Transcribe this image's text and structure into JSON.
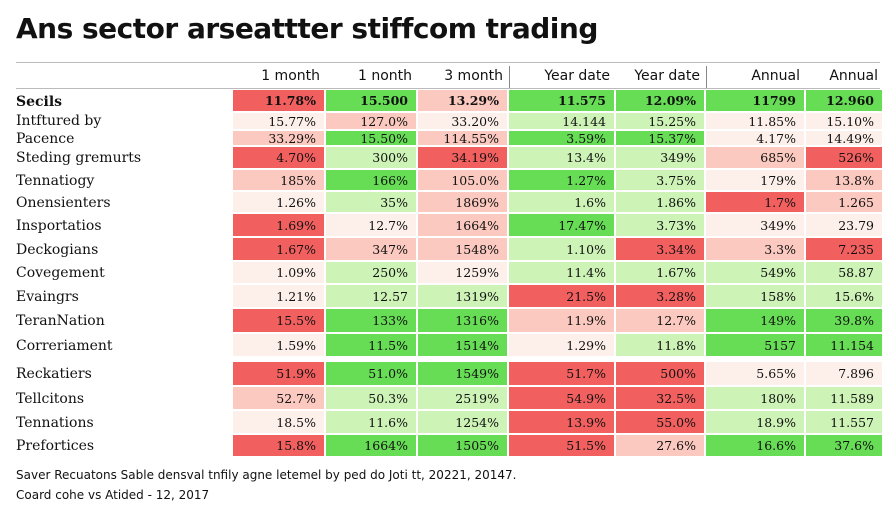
{
  "title": "Ans sector arseattter stiffcom trading",
  "columns": [
    "1 month",
    "1 nonth",
    "3 month",
    "Year date",
    "Year date",
    "Annual",
    "Annual"
  ],
  "footnotes": [
    "Saver Recuatons Sable densval tnfily agne letemel by ped do Joti tt, 20221, 20147.",
    "Coard cohe vs Atided - 12, 2017"
  ],
  "colors": {
    "strong_red": "#f25f5f",
    "light_red": "#fbc9bf",
    "pale": "#fdf0ea",
    "light_green": "#cdf3b6",
    "strong_green": "#66dd55"
  },
  "chart_data": {
    "type": "heatmap",
    "title": "Ans sector arseattter stiffcom trading",
    "columns": [
      "1 month",
      "1 nonth",
      "3 month",
      "Year date",
      "Year date",
      "Annual",
      "Annual"
    ],
    "rows": [
      {
        "label": "Secils",
        "bold": true,
        "values": [
          "11.78%",
          "15.500",
          "13.29%",
          "11.575",
          "12.09%",
          "11799",
          "12.960"
        ],
        "levels": [
          "sr",
          "sg",
          "lr",
          "sg",
          "sg",
          "sg",
          "sg"
        ]
      },
      {
        "label": "Intftured by",
        "values": [
          "15.77%",
          "127.0%",
          "33.20%",
          "14.144",
          "15.25%",
          "11.85%",
          "15.10%"
        ],
        "levels": [
          "pr",
          "lr",
          "pr",
          "lg",
          "lg",
          "pr",
          "pr"
        ]
      },
      {
        "label": "Pacence",
        "values": [
          "33.29%",
          "15.50%",
          "114.55%",
          "3.59%",
          "15.37%",
          "4.17%",
          "14.49%"
        ],
        "levels": [
          "lr",
          "sg",
          "lr",
          "sg",
          "sg",
          "pr",
          "pr"
        ]
      },
      {
        "label": "Steding gremurts",
        "values": [
          "4.70%",
          "300%",
          "34.19%",
          "13.4%",
          "349%",
          "685%",
          "526%"
        ],
        "levels": [
          "sr",
          "lg",
          "sr",
          "lg",
          "lg",
          "lr",
          "sr"
        ]
      },
      {
        "label": "Tennatiogy",
        "values": [
          "185%",
          "166%",
          "105.0%",
          "1.27%",
          "3.75%",
          "179%",
          "13.8%"
        ],
        "levels": [
          "lr",
          "sg",
          "lr",
          "sg",
          "lg",
          "pr",
          "lr"
        ]
      },
      {
        "label": "Onensienters",
        "values": [
          "1.26%",
          "35%",
          "1869%",
          "1.6%",
          "1.86%",
          "1.7%",
          "1.265"
        ],
        "levels": [
          "pr",
          "lg",
          "lr",
          "lg",
          "lg",
          "sr",
          "lr"
        ]
      },
      {
        "label": "Insportatios",
        "values": [
          "1.69%",
          "12.7%",
          "1664%",
          "17.47%",
          "3.73%",
          "349%",
          "23.79"
        ],
        "levels": [
          "sr",
          "pr",
          "lr",
          "sg",
          "lg",
          "pr",
          "pr"
        ]
      },
      {
        "label": "Deckogians",
        "values": [
          "1.67%",
          "347%",
          "1548%",
          "1.10%",
          "3.34%",
          "3.3%",
          "7.235"
        ],
        "levels": [
          "sr",
          "lr",
          "lr",
          "lg",
          "sr",
          "lr",
          "sr"
        ]
      },
      {
        "label": "Covegement",
        "values": [
          "1.09%",
          "250%",
          "1259%",
          "11.4%",
          "1.67%",
          "549%",
          "58.87"
        ],
        "levels": [
          "pr",
          "lg",
          "pr",
          "lg",
          "lg",
          "lg",
          "lg"
        ]
      },
      {
        "label": "Evaingrs",
        "values": [
          "1.21%",
          "12.57",
          "1319%",
          "21.5%",
          "3.28%",
          "158%",
          "15.6%"
        ],
        "levels": [
          "pr",
          "lg",
          "lg",
          "sr",
          "sr",
          "lg",
          "lg"
        ]
      },
      {
        "label": "TeranNation",
        "values": [
          "15.5%",
          "133%",
          "1316%",
          "11.9%",
          "12.7%",
          "149%",
          "39.8%"
        ],
        "levels": [
          "sr",
          "sg",
          "sg",
          "lr",
          "lr",
          "sg",
          "sg"
        ]
      },
      {
        "label": "Correriament",
        "values": [
          "1.59%",
          "11.5%",
          "1514%",
          "1.29%",
          "11.8%",
          "5157",
          "11.154"
        ],
        "levels": [
          "pr",
          "sg",
          "sg",
          "pr",
          "lg",
          "sg",
          "sg"
        ]
      },
      {
        "label": "Reckatiers",
        "values": [
          "51.9%",
          "51.0%",
          "1549%",
          "51.7%",
          "500%",
          "5.65%",
          "7.896"
        ],
        "levels": [
          "sr",
          "sg",
          "sg",
          "sr",
          "sr",
          "pr",
          "pr"
        ]
      },
      {
        "label": "Tellcitons",
        "values": [
          "52.7%",
          "50.3%",
          "2519%",
          "54.9%",
          "32.5%",
          "180%",
          "11.589"
        ],
        "levels": [
          "lr",
          "lg",
          "lg",
          "sr",
          "sr",
          "lg",
          "lg"
        ]
      },
      {
        "label": "Tennations",
        "values": [
          "18.5%",
          "11.6%",
          "1254%",
          "13.9%",
          "55.0%",
          "18.9%",
          "11.557"
        ],
        "levels": [
          "pr",
          "lg",
          "lg",
          "sr",
          "sr",
          "lg",
          "lg"
        ]
      },
      {
        "label": "Prefortices",
        "values": [
          "15.8%",
          "1664%",
          "1505%",
          "51.5%",
          "27.6%",
          "16.6%",
          "37.6%"
        ],
        "levels": [
          "sr",
          "sg",
          "sg",
          "sr",
          "lr",
          "sg",
          "sg"
        ]
      }
    ]
  }
}
